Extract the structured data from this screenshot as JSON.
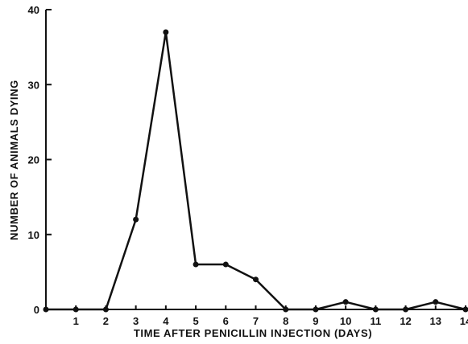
{
  "chart_data": {
    "type": "line",
    "title": "",
    "xlabel": "TIME AFTER PENICILLIN INJECTION (DAYS)",
    "ylabel": "NUMBER OF ANIMALS DYING",
    "xlim": [
      0,
      14
    ],
    "ylim": [
      0,
      40
    ],
    "x_ticks": [
      1,
      2,
      3,
      4,
      5,
      6,
      7,
      8,
      9,
      10,
      11,
      12,
      13,
      14
    ],
    "y_ticks": [
      0,
      10,
      20,
      30,
      40
    ],
    "grid": false,
    "series": [
      {
        "x": [
          0,
          1,
          2,
          3,
          4,
          5,
          6,
          7,
          8,
          9,
          10,
          11,
          12,
          13,
          14
        ],
        "y": [
          0,
          0,
          0,
          12,
          37,
          6,
          6,
          4,
          0,
          0,
          1,
          0,
          0,
          1,
          0
        ],
        "color": "#111111"
      }
    ]
  }
}
